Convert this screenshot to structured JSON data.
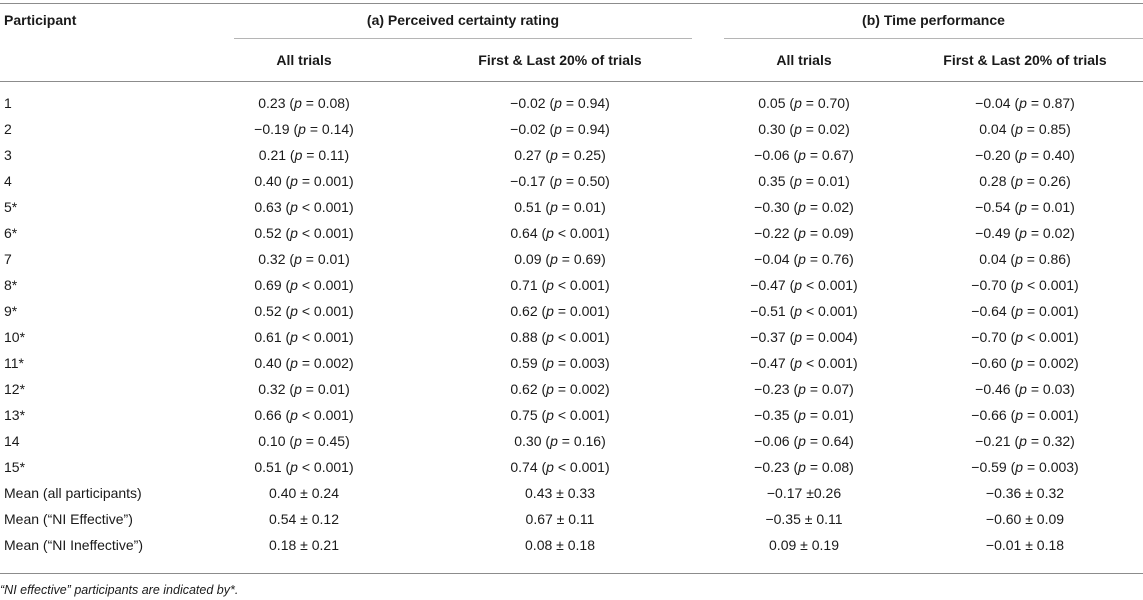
{
  "table": {
    "header": {
      "participant_label": "Participant",
      "group_a": "(a) Perceived certainty rating",
      "group_b": "(b) Time performance",
      "subcols": [
        "All trials",
        "First & Last 20% of trials",
        "All trials",
        "First & Last 20% of trials"
      ]
    },
    "rows": [
      {
        "participant": "1",
        "a_all": "0.23 (p = 0.08)",
        "a_fl": "−0.02 (p = 0.94)",
        "b_all": "0.05 (p = 0.70)",
        "b_fl": "−0.04 (p = 0.87)"
      },
      {
        "participant": "2",
        "a_all": "−0.19 (p = 0.14)",
        "a_fl": "−0.02 (p = 0.94)",
        "b_all": "0.30 (p = 0.02)",
        "b_fl": "0.04 (p = 0.85)"
      },
      {
        "participant": "3",
        "a_all": "0.21 (p = 0.11)",
        "a_fl": "0.27 (p = 0.25)",
        "b_all": "−0.06 (p = 0.67)",
        "b_fl": "−0.20 (p = 0.40)"
      },
      {
        "participant": "4",
        "a_all": "0.40 (p = 0.001)",
        "a_fl": "−0.17 (p = 0.50)",
        "b_all": "0.35 (p = 0.01)",
        "b_fl": "0.28 (p = 0.26)"
      },
      {
        "participant": "5*",
        "a_all": "0.63 (p < 0.001)",
        "a_fl": "0.51 (p = 0.01)",
        "b_all": "−0.30 (p = 0.02)",
        "b_fl": "−0.54 (p = 0.01)"
      },
      {
        "participant": "6*",
        "a_all": "0.52 (p < 0.001)",
        "a_fl": "0.64 (p < 0.001)",
        "b_all": "−0.22 (p = 0.09)",
        "b_fl": "−0.49 (p = 0.02)"
      },
      {
        "participant": "7",
        "a_all": "0.32 (p = 0.01)",
        "a_fl": "0.09 (p = 0.69)",
        "b_all": "−0.04 (p = 0.76)",
        "b_fl": "0.04 (p = 0.86)"
      },
      {
        "participant": "8*",
        "a_all": "0.69 (p < 0.001)",
        "a_fl": "0.71 (p < 0.001)",
        "b_all": "−0.47 (p < 0.001)",
        "b_fl": "−0.70 (p < 0.001)"
      },
      {
        "participant": "9*",
        "a_all": "0.52 (p < 0.001)",
        "a_fl": "0.62 (p = 0.001)",
        "b_all": "−0.51 (p < 0.001)",
        "b_fl": "−0.64 (p = 0.001)"
      },
      {
        "participant": "10*",
        "a_all": "0.61 (p < 0.001)",
        "a_fl": "0.88 (p < 0.001)",
        "b_all": "−0.37 (p = 0.004)",
        "b_fl": "−0.70 (p < 0.001)"
      },
      {
        "participant": "11*",
        "a_all": "0.40 (p = 0.002)",
        "a_fl": "0.59 (p = 0.003)",
        "b_all": "−0.47 (p < 0.001)",
        "b_fl": "−0.60 (p = 0.002)"
      },
      {
        "participant": "12*",
        "a_all": "0.32 (p = 0.01)",
        "a_fl": "0.62 (p = 0.002)",
        "b_all": "−0.23 (p = 0.07)",
        "b_fl": "−0.46 (p = 0.03)"
      },
      {
        "participant": "13*",
        "a_all": "0.66 (p < 0.001)",
        "a_fl": "0.75 (p < 0.001)",
        "b_all": "−0.35 (p = 0.01)",
        "b_fl": "−0.66 (p = 0.001)"
      },
      {
        "participant": "14",
        "a_all": "0.10 (p = 0.45)",
        "a_fl": "0.30 (p = 0.16)",
        "b_all": "−0.06 (p = 0.64)",
        "b_fl": "−0.21 (p = 0.32)"
      },
      {
        "participant": "15*",
        "a_all": "0.51 (p < 0.001)",
        "a_fl": "0.74 (p < 0.001)",
        "b_all": "−0.23 (p = 0.08)",
        "b_fl": "−0.59 (p = 0.003)"
      },
      {
        "participant": "Mean (all participants)",
        "a_all": "0.40 ± 0.24",
        "a_fl": "0.43 ± 0.33",
        "b_all": "−0.17 ±0.26",
        "b_fl": "−0.36 ± 0.32"
      },
      {
        "participant": "Mean (“NI Effective”)",
        "a_all": "0.54 ± 0.12",
        "a_fl": "0.67 ± 0.11",
        "b_all": "−0.35 ± 0.11",
        "b_fl": "−0.60 ± 0.09"
      },
      {
        "participant": "Mean (“NI Ineffective”)",
        "a_all": "0.18 ± 0.21",
        "a_fl": "0.08 ± 0.18",
        "b_all": "0.09 ± 0.19",
        "b_fl": "−0.01 ± 0.18"
      }
    ]
  },
  "footnote": "“NI effective” participants are indicated by*."
}
